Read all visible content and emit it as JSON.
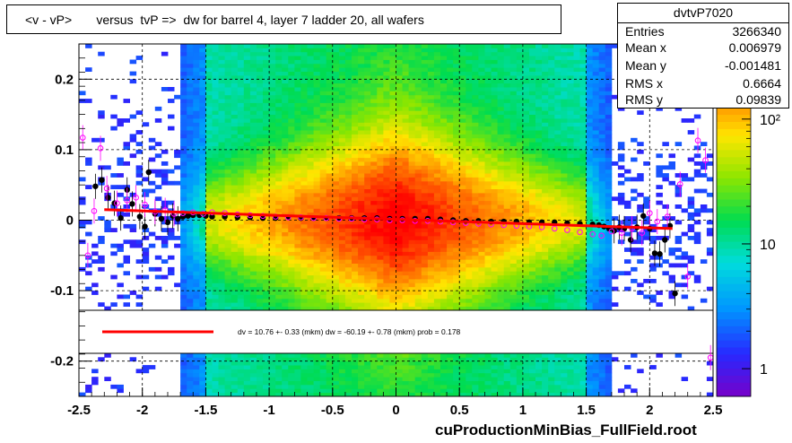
{
  "title": "<v - vP>       versus  tvP =>  dw for barrel 4, layer 7 ladder 20, all wafers",
  "stats": {
    "name": "dvtvP7020",
    "rows": [
      {
        "key": "Entries",
        "value": "3266340"
      },
      {
        "key": "Mean x",
        "value": "0.006979"
      },
      {
        "key": "Mean y",
        "value": "-0.001481"
      },
      {
        "key": "RMS x",
        "value": "0.6664"
      },
      {
        "key": "RMS y",
        "value": "0.09839"
      }
    ]
  },
  "fit_text": "dv =    10.76 +-  0.33 (mkm) dw =  -60.19 +-  0.78 (mkm) prob = 0.178",
  "footer": "cuProductionMinBias_FullField.root",
  "colors": {
    "fit_line": "#ff0000",
    "profile_black": "#000000",
    "profile_magenta": "#ff00ff"
  },
  "chart_data": {
    "type": "heatmap",
    "xlim": [
      -2.5,
      2.5
    ],
    "ylim": [
      -0.25,
      0.25
    ],
    "x_ticks": [
      "-2.5",
      "-2",
      "-1.5",
      "-1",
      "-0.5",
      "0",
      "0.5",
      "1",
      "1.5",
      "2",
      "2.5"
    ],
    "x_tick_values": [
      -2.5,
      -2,
      -1.5,
      -1,
      -0.5,
      0,
      0.5,
      1,
      1.5,
      2,
      2.5
    ],
    "y_ticks": [
      "-0.2",
      "-0.1",
      "0",
      "0.1",
      "0.2"
    ],
    "y_tick_values": [
      -0.2,
      -0.1,
      0,
      0.1,
      0.2
    ],
    "grid": true,
    "colorbar": {
      "scale": "log",
      "range": [
        0.6,
        400
      ],
      "ticks": [
        "1",
        "10",
        "10²"
      ],
      "tick_values": [
        1,
        10,
        100
      ]
    },
    "fit_line": {
      "x": [
        -2.3,
        2.18
      ],
      "y": [
        0.015,
        -0.012
      ]
    },
    "series": [
      {
        "marker": "filled-circle",
        "color": "#000000",
        "points": [
          [
            -2.37,
            0.048
          ],
          [
            -2.32,
            0.057
          ],
          [
            -2.27,
            0.032
          ],
          [
            -2.22,
            0.024
          ],
          [
            -2.17,
            0.003
          ],
          [
            -2.12,
            0.043
          ],
          [
            -2.08,
            0.023
          ],
          [
            -2.02,
            0.005
          ],
          [
            -1.98,
            -0.009
          ],
          [
            -1.95,
            0.068
          ],
          [
            -1.9,
            0.009
          ],
          [
            -1.85,
            0.002
          ],
          [
            -1.8,
            -0.003
          ],
          [
            -1.76,
            0.006
          ],
          [
            -1.72,
            0.002
          ],
          [
            -1.68,
            0.005
          ],
          [
            -1.64,
            0.006
          ],
          [
            -1.6,
            0.007
          ],
          [
            -1.55,
            0.007
          ],
          [
            -1.5,
            0.006
          ],
          [
            -1.45,
            0.005
          ],
          [
            -1.35,
            0.005
          ],
          [
            -1.25,
            0.004
          ],
          [
            -1.15,
            0.004
          ],
          [
            -1.05,
            0.003
          ],
          [
            -0.95,
            0.003
          ],
          [
            -0.85,
            0.004
          ],
          [
            -0.75,
            0.003
          ],
          [
            -0.65,
            0.003
          ],
          [
            -0.55,
            0.003
          ],
          [
            -0.45,
            0.003
          ],
          [
            -0.35,
            0.003
          ],
          [
            -0.25,
            0.003
          ],
          [
            -0.15,
            0.003
          ],
          [
            -0.05,
            0.002
          ],
          [
            0.05,
            0.002
          ],
          [
            0.15,
            0.002
          ],
          [
            0.25,
            0.002
          ],
          [
            0.35,
            0.001
          ],
          [
            0.45,
            0.0
          ],
          [
            0.55,
            -0.001
          ],
          [
            0.65,
            -0.001
          ],
          [
            0.75,
            -0.002
          ],
          [
            0.85,
            -0.002
          ],
          [
            0.95,
            -0.002
          ],
          [
            1.05,
            -0.003
          ],
          [
            1.15,
            -0.003
          ],
          [
            1.25,
            -0.003
          ],
          [
            1.35,
            -0.004
          ],
          [
            1.45,
            -0.005
          ],
          [
            1.55,
            -0.006
          ],
          [
            1.6,
            -0.007
          ],
          [
            1.64,
            -0.009
          ],
          [
            1.68,
            -0.012
          ],
          [
            1.72,
            -0.015
          ],
          [
            1.76,
            -0.01
          ],
          [
            1.8,
            -0.012
          ],
          [
            1.85,
            -0.028
          ],
          [
            1.9,
            -0.01
          ],
          [
            1.95,
            0.006
          ],
          [
            2.0,
            -0.012
          ],
          [
            2.04,
            -0.047
          ],
          [
            2.08,
            -0.048
          ],
          [
            2.12,
            -0.028
          ],
          [
            2.16,
            -0.008
          ],
          [
            2.2,
            -0.104
          ]
        ]
      },
      {
        "marker": "open-circle",
        "color": "#ff00ff",
        "points": [
          [
            -2.47,
            0.117
          ],
          [
            -2.43,
            -0.05
          ],
          [
            -2.38,
            0.013
          ],
          [
            -2.33,
            0.102
          ],
          [
            -2.28,
            0.045
          ],
          [
            -2.2,
            0.024
          ],
          [
            -2.12,
            0.028
          ],
          [
            -2.05,
            0.032
          ],
          [
            -1.98,
            0.022
          ],
          [
            -1.9,
            0.012
          ],
          [
            -1.82,
            0.014
          ],
          [
            -1.75,
            0.009
          ],
          [
            -1.68,
            0.01
          ],
          [
            -1.6,
            0.011
          ],
          [
            -1.52,
            0.009
          ],
          [
            -1.45,
            0.011
          ],
          [
            -1.35,
            0.01
          ],
          [
            -1.25,
            0.008
          ],
          [
            -1.15,
            0.007
          ],
          [
            -1.05,
            0.006
          ],
          [
            -0.95,
            0.005
          ],
          [
            -0.85,
            0.004
          ],
          [
            -0.75,
            0.004
          ],
          [
            -0.65,
            0.003
          ],
          [
            -0.55,
            0.003
          ],
          [
            -0.45,
            0.002
          ],
          [
            -0.35,
            0.002
          ],
          [
            -0.25,
            0.001
          ],
          [
            -0.15,
            0.001
          ],
          [
            -0.05,
            0.0
          ],
          [
            0.05,
            0.0
          ],
          [
            0.15,
            -0.001
          ],
          [
            0.25,
            -0.001
          ],
          [
            0.35,
            -0.002
          ],
          [
            0.45,
            -0.003
          ],
          [
            0.55,
            -0.004
          ],
          [
            0.65,
            -0.005
          ],
          [
            0.75,
            -0.006
          ],
          [
            0.85,
            -0.007
          ],
          [
            0.95,
            -0.008
          ],
          [
            1.05,
            -0.009
          ],
          [
            1.15,
            -0.01
          ],
          [
            1.25,
            -0.012
          ],
          [
            1.35,
            -0.014
          ],
          [
            1.45,
            -0.017
          ],
          [
            1.55,
            -0.02
          ],
          [
            1.62,
            -0.022
          ],
          [
            1.7,
            -0.016
          ],
          [
            1.78,
            -0.018
          ],
          [
            1.86,
            -0.012
          ],
          [
            1.94,
            -0.018
          ],
          [
            2.0,
            0.01
          ],
          [
            2.06,
            -0.002
          ],
          [
            2.14,
            0.005
          ],
          [
            2.24,
            0.051
          ],
          [
            2.3,
            -0.08
          ],
          [
            2.38,
            0.113
          ],
          [
            2.44,
            0.085
          ],
          [
            2.48,
            -0.195
          ]
        ]
      }
    ]
  }
}
